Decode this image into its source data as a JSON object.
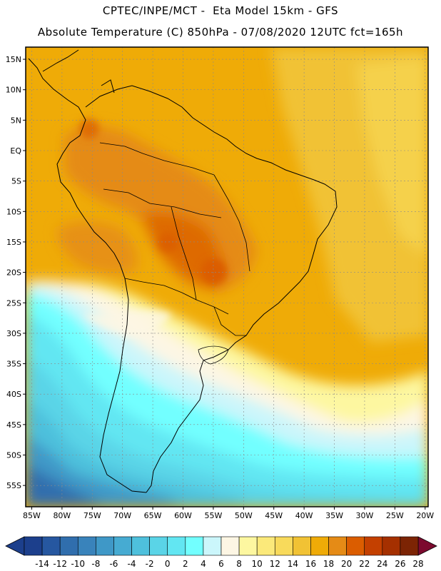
{
  "header": {
    "line1": "CPTEC/INPE/MCT -  Eta Model 15km - GFS",
    "line2": "Absolute Temperature (C) 850hPa - 07/08/2020 12UTC fct=165h"
  },
  "axes": {
    "lat_labels": [
      "15N",
      "10N",
      "5N",
      "EQ",
      "5S",
      "10S",
      "15S",
      "20S",
      "25S",
      "30S",
      "35S",
      "40S",
      "45S",
      "50S",
      "55S"
    ],
    "lat_values": [
      15,
      10,
      5,
      0,
      -5,
      -10,
      -15,
      -20,
      -25,
      -30,
      -35,
      -40,
      -45,
      -50,
      -55
    ],
    "lon_labels": [
      "85W",
      "80W",
      "75W",
      "70W",
      "65W",
      "60W",
      "55W",
      "50W",
      "45W",
      "40W",
      "35W",
      "30W",
      "25W",
      "20W"
    ],
    "lon_values": [
      -85,
      -80,
      -75,
      -70,
      -65,
      -60,
      -55,
      -50,
      -45,
      -40,
      -35,
      -30,
      -25,
      -20
    ],
    "lon_range": [
      -86,
      -19.5
    ],
    "lat_range": [
      -58.5,
      17
    ]
  },
  "colorbar": {
    "labels": [
      "-14",
      "-12",
      "-10",
      "-8",
      "-6",
      "-4",
      "-2",
      "0",
      "2",
      "4",
      "6",
      "8",
      "10",
      "12",
      "14",
      "16",
      "18",
      "20",
      "22",
      "24",
      "26",
      "28"
    ],
    "colors": [
      "#1c3f8c",
      "#2657a0",
      "#306ead",
      "#3983bb",
      "#3f98c7",
      "#46abd2",
      "#4ec0dc",
      "#5ad4e7",
      "#62e6f2",
      "#72ffff",
      "#cbf6fb",
      "#fdf6e4",
      "#fdf7a0",
      "#fbe97a",
      "#f8da5b",
      "#f1c234",
      "#efab07",
      "#e58b16",
      "#db5d00",
      "#c44000",
      "#a53000",
      "#7c2404"
    ],
    "left_arrow_color": "#1c3f8c",
    "right_arrow_color": "#7c0a2e"
  }
}
